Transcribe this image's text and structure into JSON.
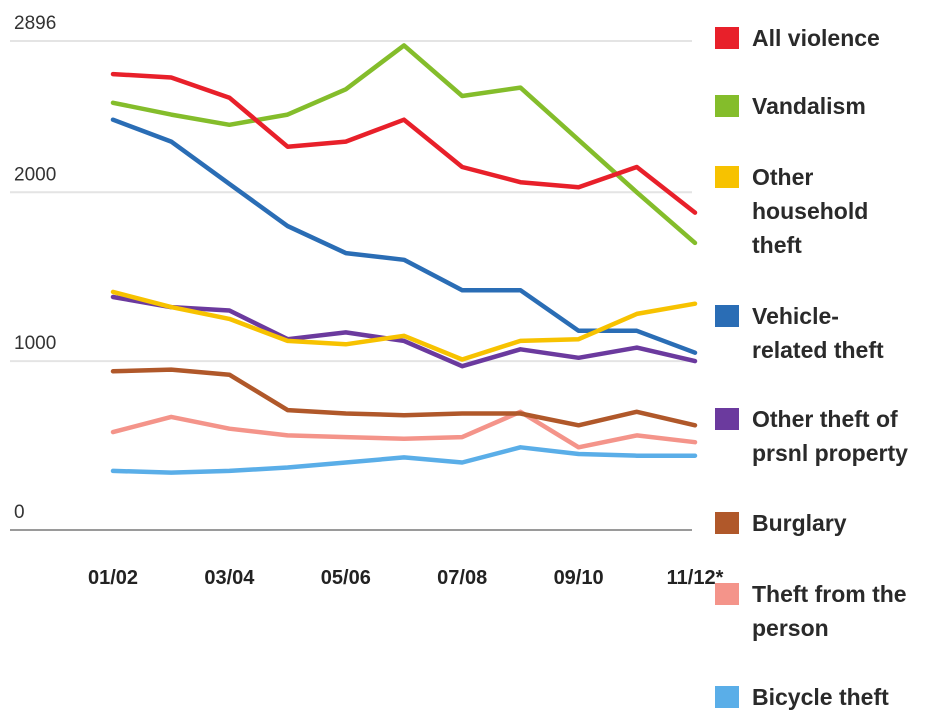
{
  "chart_data": {
    "type": "line",
    "title": "",
    "xlabel": "",
    "ylabel": "",
    "ylim": [
      0,
      2896
    ],
    "y_ticks": [
      "0",
      "1000",
      "2000",
      "2896"
    ],
    "y_tick_values": [
      0,
      1000,
      2000,
      2896
    ],
    "x_tick_labels": [
      "01/02",
      "03/04",
      "05/06",
      "07/08",
      "09/10",
      "11/12*"
    ],
    "x": [
      "01/02",
      "02/03",
      "03/04",
      "04/05",
      "05/06",
      "06/07",
      "07/08",
      "08/09",
      "09/10",
      "10/11",
      "11/12*"
    ],
    "grid": true,
    "legend_position": "right",
    "series": [
      {
        "name": "All violence",
        "color": "#e8202a",
        "values": [
          2700,
          2680,
          2560,
          2270,
          2300,
          2430,
          2150,
          2060,
          2030,
          2150,
          1880
        ]
      },
      {
        "name": "Vandalism",
        "color": "#84bd2b",
        "values": [
          2530,
          2460,
          2400,
          2460,
          2610,
          2870,
          2570,
          2620,
          2310,
          2000,
          1700
        ]
      },
      {
        "name": "Other household theft",
        "color": "#f7c200",
        "label_lines": [
          "Other",
          "household",
          "theft"
        ],
        "values": [
          1410,
          1320,
          1250,
          1120,
          1100,
          1150,
          1010,
          1120,
          1130,
          1280,
          1340
        ]
      },
      {
        "name": "Vehicle-related theft",
        "color": "#2a6db5",
        "label_lines": [
          "Vehicle-",
          "related theft"
        ],
        "values": [
          2430,
          2300,
          2050,
          1800,
          1640,
          1600,
          1420,
          1420,
          1180,
          1180,
          1050
        ]
      },
      {
        "name": "Other theft of prsnl property",
        "color": "#6b3a9e",
        "label_lines": [
          "Other theft of",
          "prsnl property"
        ],
        "values": [
          1380,
          1320,
          1300,
          1130,
          1170,
          1120,
          970,
          1070,
          1020,
          1080,
          1000
        ]
      },
      {
        "name": "Burglary",
        "color": "#b0582a",
        "values": [
          940,
          950,
          920,
          710,
          690,
          680,
          690,
          690,
          620,
          700,
          620
        ]
      },
      {
        "name": "Theft from the person",
        "color": "#f4948a",
        "label_lines": [
          "Theft from the",
          "person"
        ],
        "values": [
          580,
          670,
          600,
          560,
          550,
          540,
          550,
          700,
          490,
          560,
          520
        ]
      },
      {
        "name": "Bicycle theft",
        "color": "#5aaee8",
        "values": [
          350,
          340,
          350,
          370,
          400,
          430,
          400,
          490,
          450,
          440,
          440
        ]
      }
    ]
  }
}
